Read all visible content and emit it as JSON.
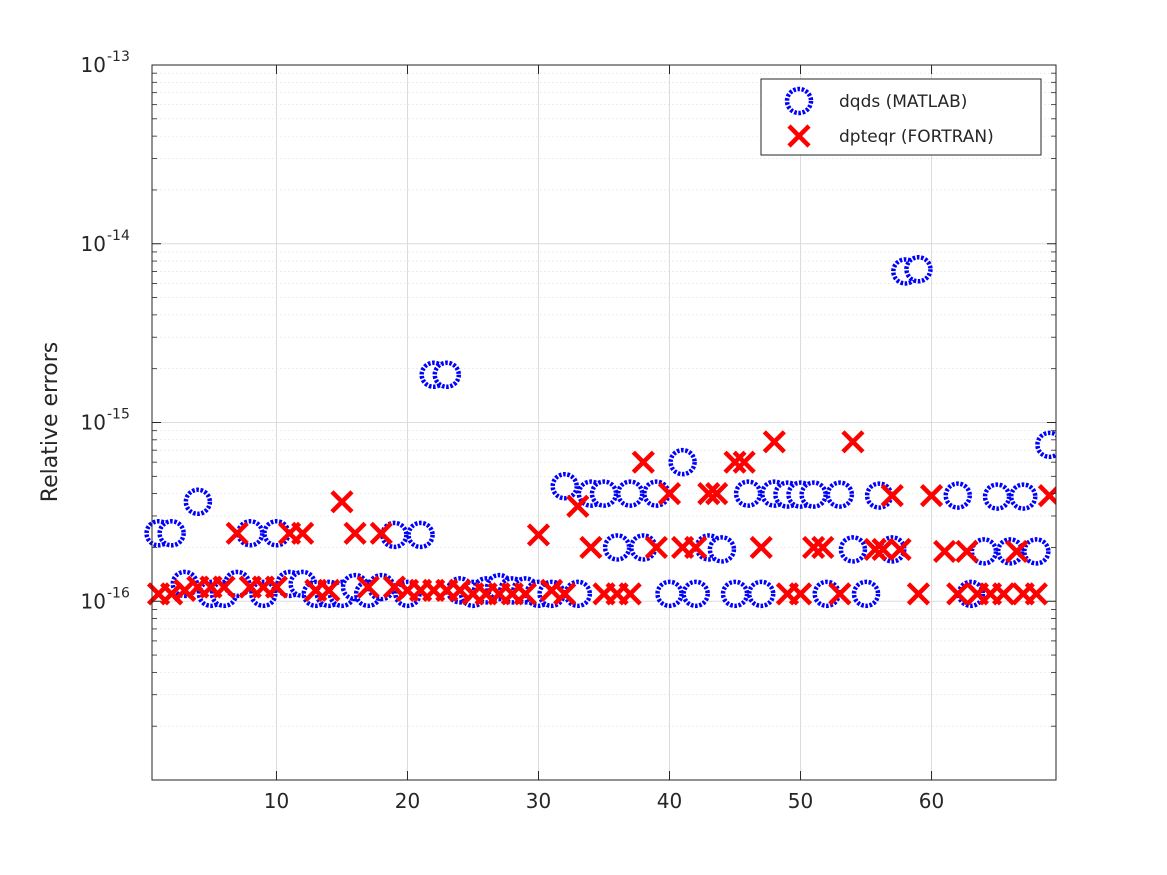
{
  "chart_data": {
    "type": "scatter",
    "title": "",
    "xlabel": "",
    "ylabel": "Relative errors",
    "xlim": [
      0.5,
      69.5
    ],
    "ylim": [
      1e-17,
      1e-13
    ],
    "yscale": "log",
    "grid": true,
    "minor_grid": true,
    "legend_position": "top-right",
    "x_ticks": [
      10,
      20,
      30,
      40,
      50,
      60
    ],
    "y_ticks": [
      {
        "value": 1e-16,
        "base": "10",
        "exponent": "-16"
      },
      {
        "value": 1e-15,
        "base": "10",
        "exponent": "-15"
      },
      {
        "value": 1e-14,
        "base": "10",
        "exponent": "-14"
      },
      {
        "value": 1e-13,
        "base": "10",
        "exponent": "-13"
      }
    ],
    "series": [
      {
        "name": "dqds (MATLAB)",
        "marker": "circle",
        "color": "#0000ff",
        "points": [
          [
            1,
            2.4e-16
          ],
          [
            2,
            2.4e-16
          ],
          [
            3,
            1.25e-16
          ],
          [
            4,
            3.6e-16
          ],
          [
            5,
            1.1e-16
          ],
          [
            6,
            1.1e-16
          ],
          [
            7,
            1.25e-16
          ],
          [
            8,
            2.4e-16
          ],
          [
            9,
            1.1e-16
          ],
          [
            10,
            2.4e-16
          ],
          [
            11,
            1.25e-16
          ],
          [
            12,
            1.25e-16
          ],
          [
            13,
            1.1e-16
          ],
          [
            14,
            1.1e-16
          ],
          [
            15,
            1.1e-16
          ],
          [
            16,
            1.2e-16
          ],
          [
            17,
            1.1e-16
          ],
          [
            18,
            1.2e-16
          ],
          [
            19,
            2.35e-16
          ],
          [
            20,
            1.1e-16
          ],
          [
            21,
            2.35e-16
          ],
          [
            22,
            1.85e-15
          ],
          [
            23,
            1.85e-15
          ],
          [
            24,
            1.15e-16
          ],
          [
            25,
            1.1e-16
          ],
          [
            26,
            1.15e-16
          ],
          [
            27,
            1.2e-16
          ],
          [
            28,
            1.15e-16
          ],
          [
            29,
            1.15e-16
          ],
          [
            30,
            1.1e-16
          ],
          [
            31,
            1.1e-16
          ],
          [
            32,
            4.4e-16
          ],
          [
            33,
            1.1e-16
          ],
          [
            34,
            4e-16
          ],
          [
            35,
            4e-16
          ],
          [
            36,
            2e-16
          ],
          [
            37,
            4e-16
          ],
          [
            38,
            2e-16
          ],
          [
            39,
            4e-16
          ],
          [
            40,
            1.1e-16
          ],
          [
            41,
            6e-16
          ],
          [
            42,
            1.1e-16
          ],
          [
            43,
            2e-16
          ],
          [
            44,
            1.95e-16
          ],
          [
            45,
            1.1e-16
          ],
          [
            46,
            4e-16
          ],
          [
            47,
            1.1e-16
          ],
          [
            48,
            4e-16
          ],
          [
            49,
            3.95e-16
          ],
          [
            50,
            3.95e-16
          ],
          [
            51,
            3.95e-16
          ],
          [
            52,
            1.1e-16
          ],
          [
            53,
            3.95e-16
          ],
          [
            54,
            1.95e-16
          ],
          [
            55,
            1.1e-16
          ],
          [
            56,
            3.9e-16
          ],
          [
            57,
            1.95e-16
          ],
          [
            58,
            7e-15
          ],
          [
            59,
            7.2e-15
          ],
          [
            62,
            3.9e-16
          ],
          [
            63,
            1.1e-16
          ],
          [
            64,
            1.9e-16
          ],
          [
            65,
            3.85e-16
          ],
          [
            66,
            1.9e-16
          ],
          [
            67,
            3.85e-16
          ],
          [
            68,
            1.9e-16
          ],
          [
            69,
            7.5e-16
          ]
        ]
      },
      {
        "name": "dpteqr (FORTRAN)",
        "marker": "x",
        "color": "#ff0000",
        "points": [
          [
            1,
            1.1e-16
          ],
          [
            2,
            1.1e-16
          ],
          [
            3,
            1.15e-16
          ],
          [
            4,
            1.2e-16
          ],
          [
            5,
            1.2e-16
          ],
          [
            6,
            1.2e-16
          ],
          [
            7,
            2.4e-16
          ],
          [
            8,
            1.2e-16
          ],
          [
            9,
            1.2e-16
          ],
          [
            10,
            1.2e-16
          ],
          [
            11,
            2.4e-16
          ],
          [
            12,
            2.4e-16
          ],
          [
            13,
            1.15e-16
          ],
          [
            14,
            1.15e-16
          ],
          [
            15,
            3.6e-16
          ],
          [
            16,
            2.4e-16
          ],
          [
            17,
            1.2e-16
          ],
          [
            18,
            2.4e-16
          ],
          [
            19,
            1.2e-16
          ],
          [
            20,
            1.15e-16
          ],
          [
            21,
            1.15e-16
          ],
          [
            22,
            1.15e-16
          ],
          [
            23,
            1.15e-16
          ],
          [
            24,
            1.15e-16
          ],
          [
            25,
            1.1e-16
          ],
          [
            26,
            1.1e-16
          ],
          [
            27,
            1.1e-16
          ],
          [
            28,
            1.1e-16
          ],
          [
            29,
            1.1e-16
          ],
          [
            30,
            2.35e-16
          ],
          [
            31,
            1.15e-16
          ],
          [
            32,
            1.1e-16
          ],
          [
            33,
            3.4e-16
          ],
          [
            34,
            2e-16
          ],
          [
            35,
            1.1e-16
          ],
          [
            36,
            1.1e-16
          ],
          [
            37,
            1.1e-16
          ],
          [
            38,
            6e-16
          ],
          [
            39,
            2e-16
          ],
          [
            40,
            4e-16
          ],
          [
            41,
            2e-16
          ],
          [
            42,
            2e-16
          ],
          [
            43,
            4e-16
          ],
          [
            43.6,
            4e-16
          ],
          [
            45,
            6e-16
          ],
          [
            45.7,
            6e-16
          ],
          [
            47,
            2e-16
          ],
          [
            48,
            7.8e-16
          ],
          [
            49,
            1.1e-16
          ],
          [
            50,
            1.1e-16
          ],
          [
            51,
            2e-16
          ],
          [
            51.7,
            2e-16
          ],
          [
            53,
            1.1e-16
          ],
          [
            54,
            7.8e-16
          ],
          [
            55.7,
            1.95e-16
          ],
          [
            56.3,
            1.95e-16
          ],
          [
            57,
            3.9e-16
          ],
          [
            57.6,
            1.95e-16
          ],
          [
            59,
            1.1e-16
          ],
          [
            60,
            3.9e-16
          ],
          [
            61,
            1.9e-16
          ],
          [
            62,
            1.1e-16
          ],
          [
            62.7,
            1.9e-16
          ],
          [
            63.5,
            1.1e-16
          ],
          [
            64.5,
            1.1e-16
          ],
          [
            65.5,
            1.1e-16
          ],
          [
            66.5,
            1.9e-16
          ],
          [
            67,
            1.1e-16
          ],
          [
            68,
            1.1e-16
          ],
          [
            69,
            3.9e-16
          ]
        ]
      }
    ]
  }
}
